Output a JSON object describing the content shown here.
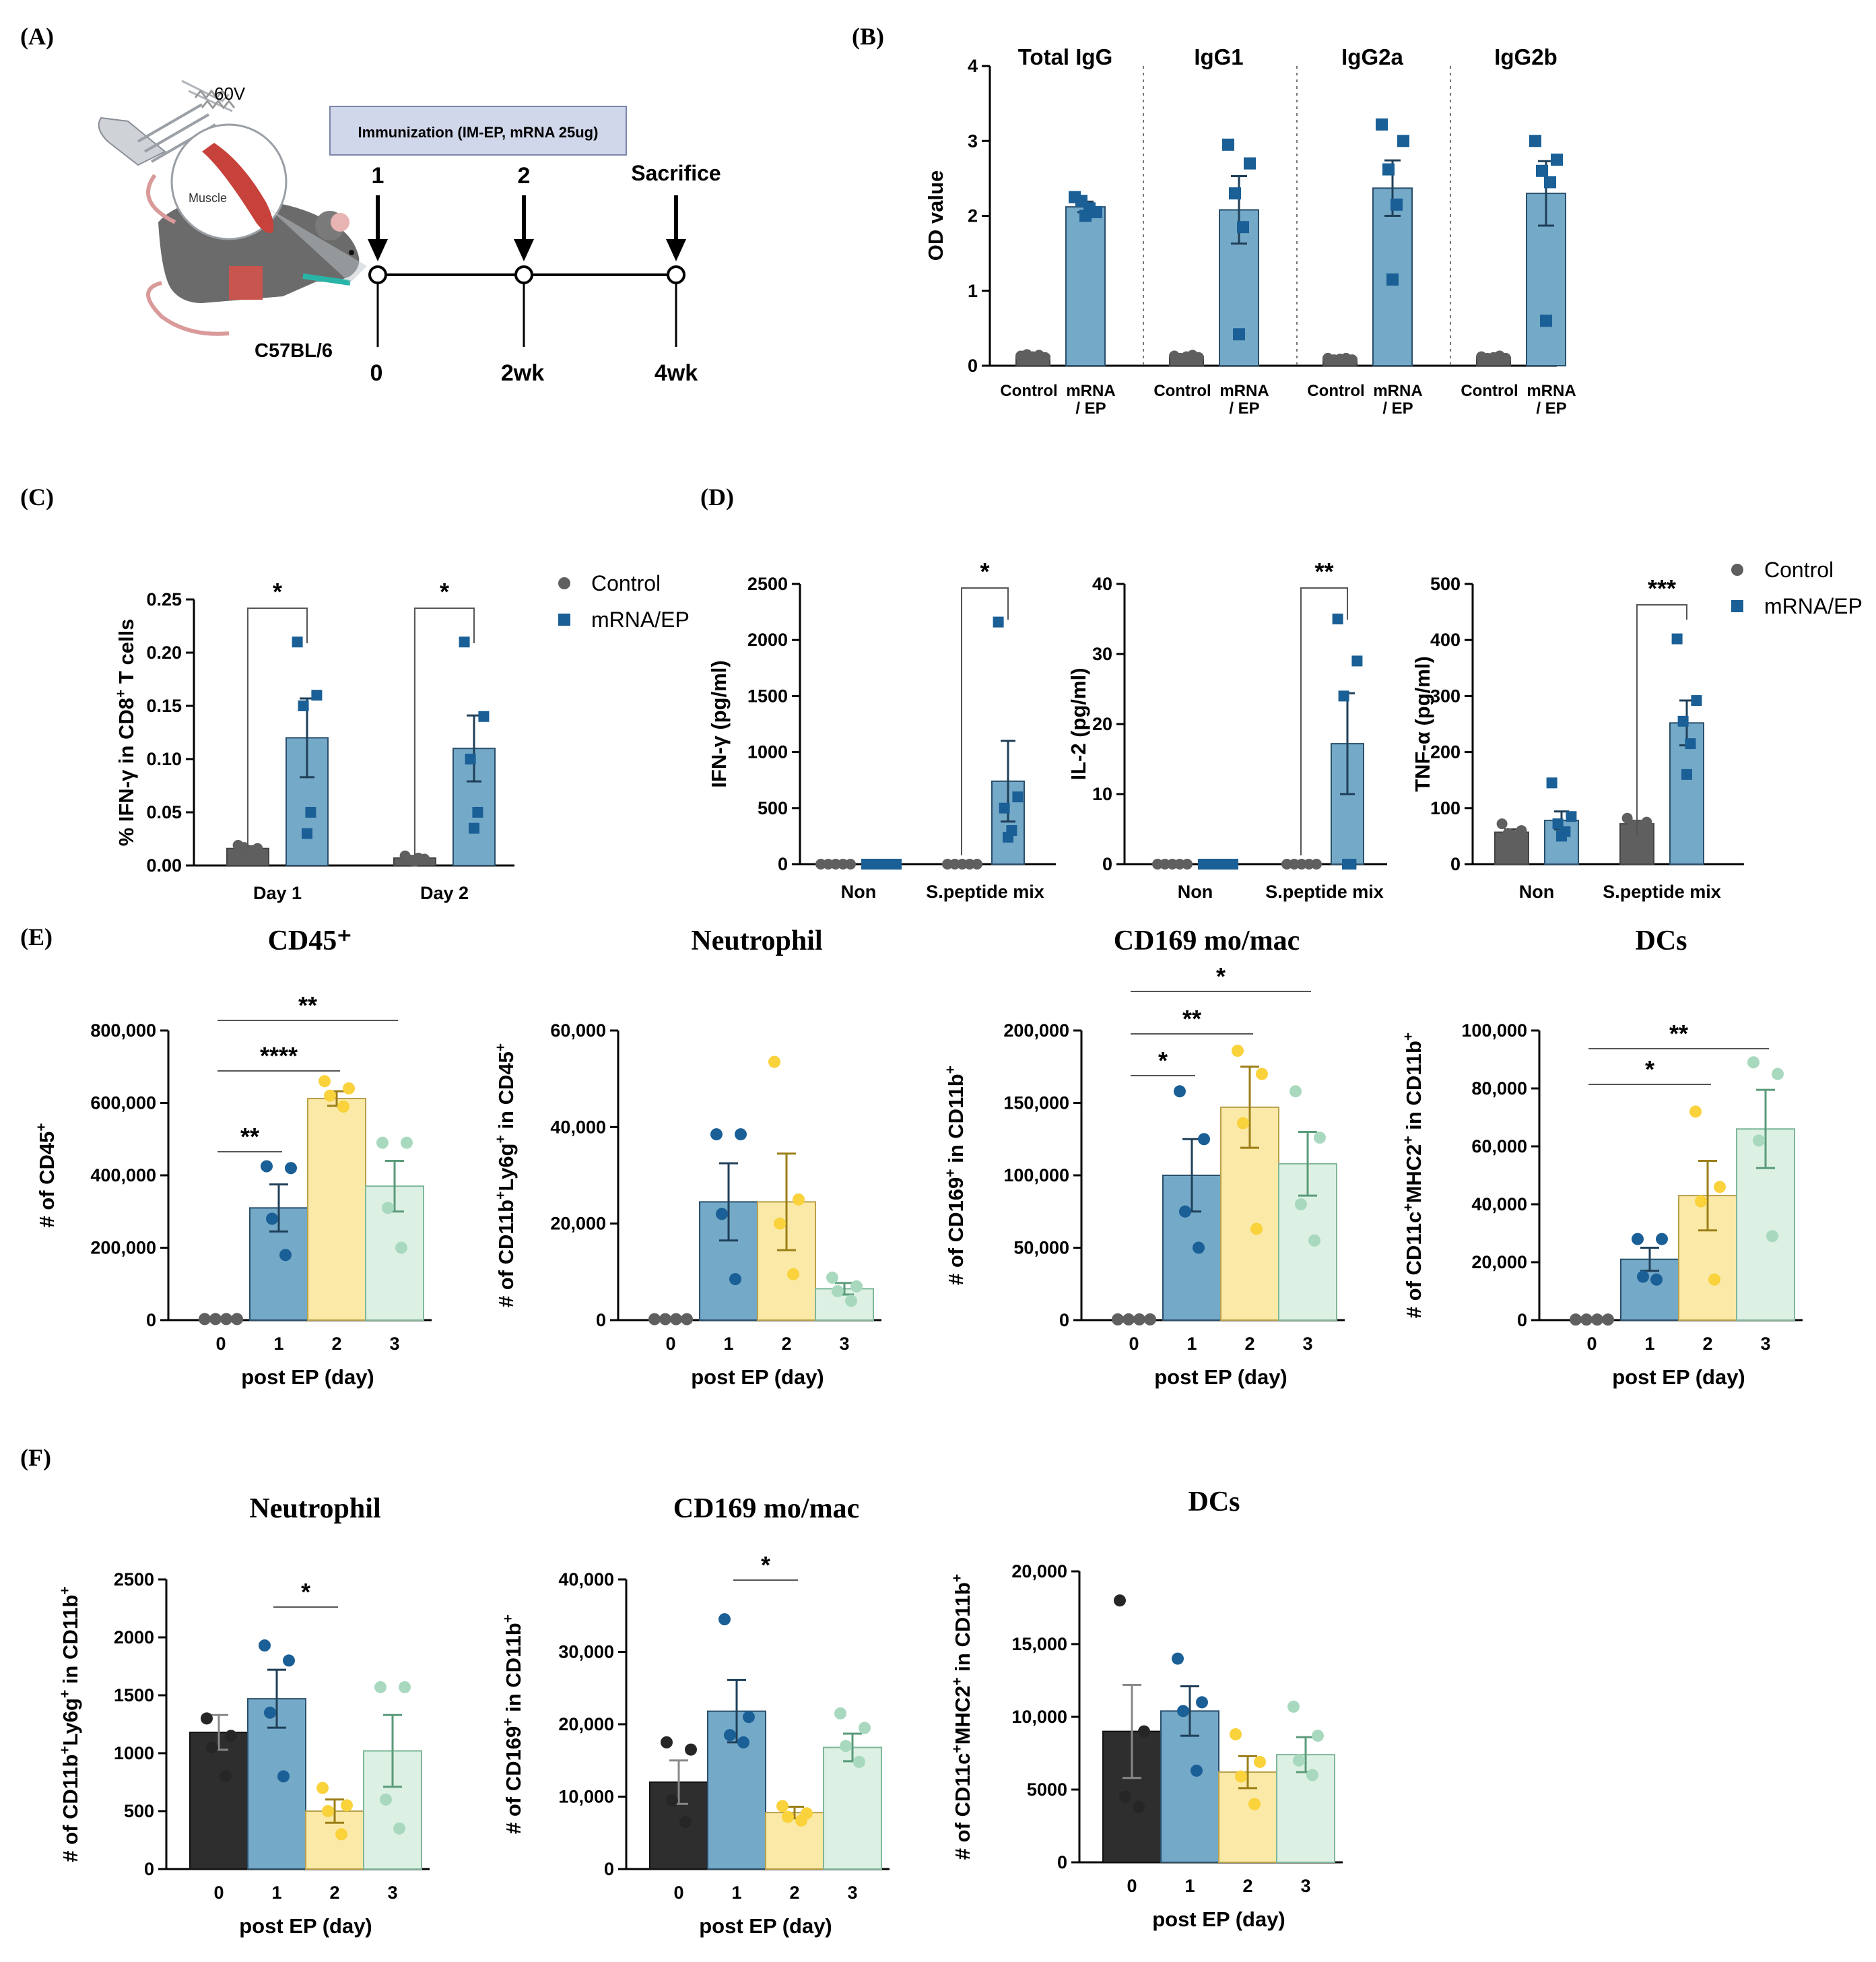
{
  "colors": {
    "grey": "#5f5f5f",
    "blue": "#1a5f96",
    "blue_bar": "#74a9c8",
    "yellow": "#f9d23c",
    "yellow_bar": "#fbe9a7",
    "green": "#a8d9bf",
    "green_bar": "#dcf0e3",
    "black": "#262626",
    "black_bar": "#2e2e2e"
  },
  "panels": {
    "A": "(A)",
    "B": "(B)",
    "C": "(C)",
    "D": "(D)",
    "E": "(E)",
    "F": "(F)"
  },
  "diagram": {
    "voltage": "60V",
    "muscle": "Muscle",
    "immunization": "Immunization (IM-EP, mRNA 25ug)",
    "strain": "C57BL/6",
    "dose1": "1",
    "dose2": "2",
    "sacrifice": "Sacrifice",
    "t0": "0",
    "t1": "2wk",
    "t2": "4wk"
  },
  "chart_data": [
    {
      "id": "B",
      "type": "bar",
      "ylabel": "OD value",
      "ylim": [
        0,
        4
      ],
      "yticks": [
        "0",
        "1",
        "2",
        "3",
        "4"
      ],
      "groups": [
        {
          "title": "Total IgG",
          "categories": [
            "Control",
            "mRNA / EP"
          ],
          "means": [
            0.13,
            2.12
          ],
          "sem": [
            0.02,
            0.07
          ],
          "points": [
            [
              0.13,
              0.15,
              0.12,
              0.14,
              0.11
            ],
            [
              2.25,
              2.05,
              2.2,
              2.1,
              2.0
            ]
          ]
        },
        {
          "title": "IgG1",
          "categories": [
            "Control",
            "mRNA / EP"
          ],
          "means": [
            0.12,
            2.08
          ],
          "sem": [
            0.02,
            0.45
          ],
          "points": [
            [
              0.13,
              0.1,
              0.12,
              0.14,
              0.11
            ],
            [
              2.95,
              2.7,
              2.3,
              1.85,
              0.42
            ]
          ]
        },
        {
          "title": "IgG2a",
          "categories": [
            "Control",
            "mRNA / EP"
          ],
          "means": [
            0.09,
            2.37
          ],
          "sem": [
            0.01,
            0.37
          ],
          "points": [
            [
              0.1,
              0.08,
              0.09,
              0.1,
              0.08
            ],
            [
              3.22,
              3.0,
              2.62,
              2.15,
              1.15
            ]
          ]
        },
        {
          "title": "IgG2b",
          "categories": [
            "Control",
            "mRNA / EP"
          ],
          "means": [
            0.11,
            2.3
          ],
          "sem": [
            0.02,
            0.43
          ],
          "points": [
            [
              0.12,
              0.1,
              0.11,
              0.13,
              0.1
            ],
            [
              3.0,
              2.75,
              2.6,
              2.45,
              0.6
            ]
          ]
        }
      ]
    },
    {
      "id": "C",
      "type": "bar",
      "ylabel": "% IFN-γ in CD8⁺ T cells",
      "ylim": [
        0,
        0.25
      ],
      "yticks": [
        "0.00",
        "0.05",
        "0.10",
        "0.15",
        "0.20",
        "0.25"
      ],
      "categories": [
        "Day 1",
        "Day 2"
      ],
      "series": [
        {
          "name": "Control",
          "means": [
            0.016,
            0.007
          ],
          "sem": [
            0.002,
            0.002
          ],
          "points": [
            [
              0.019,
              0.016,
              0.017,
              0.014,
              0.013
            ],
            [
              0.009,
              0.006,
              0.005,
              0.007,
              0.004
            ]
          ]
        },
        {
          "name": "mRNA/EP",
          "means": [
            0.12,
            0.11
          ],
          "sem": [
            0.037,
            0.031
          ],
          "points": [
            [
              0.21,
              0.16,
              0.15,
              0.05,
              0.03
            ],
            [
              0.21,
              0.14,
              0.1,
              0.05,
              0.035
            ]
          ]
        }
      ],
      "significance": [
        "*",
        "*"
      ]
    },
    {
      "id": "D1",
      "type": "bar",
      "ylabel": "IFN-γ (pg/ml)",
      "ylim": [
        0,
        2500
      ],
      "yticks": [
        "0",
        "500",
        "1000",
        "1500",
        "2000",
        "2500"
      ],
      "categories": [
        "Non",
        "S.peptide mix"
      ],
      "series": [
        {
          "name": "Control",
          "means": [
            0,
            0
          ],
          "sem": [
            0,
            0
          ],
          "points": [
            [
              0,
              0,
              0,
              0,
              0
            ],
            [
              0,
              0,
              0,
              0,
              0
            ]
          ]
        },
        {
          "name": "mRNA/EP",
          "means": [
            0,
            740
          ],
          "sem": [
            0,
            360
          ],
          "points": [
            [
              0,
              0,
              0,
              0,
              0
            ],
            [
              2160,
              600,
              500,
              300,
              240
            ]
          ]
        }
      ],
      "significance": "*"
    },
    {
      "id": "D2",
      "type": "bar",
      "ylabel": "IL-2 (pg/ml)",
      "ylim": [
        0,
        40
      ],
      "yticks": [
        "0",
        "10",
        "20",
        "30",
        "40"
      ],
      "categories": [
        "Non",
        "S.peptide mix"
      ],
      "series": [
        {
          "name": "Control",
          "means": [
            0,
            0
          ],
          "sem": [
            0,
            0
          ],
          "points": [
            [
              0,
              0,
              0,
              0,
              0
            ],
            [
              0,
              0,
              0,
              0,
              0
            ]
          ]
        },
        {
          "name": "mRNA/EP",
          "means": [
            0,
            17.2
          ],
          "sem": [
            0,
            7.2
          ],
          "points": [
            [
              0,
              0,
              0,
              0,
              0
            ],
            [
              35,
              29,
              24,
              0,
              0
            ]
          ]
        }
      ],
      "significance": "**"
    },
    {
      "id": "D3",
      "type": "bar",
      "ylabel": "TNF-α (pg/ml)",
      "ylim": [
        0,
        500
      ],
      "yticks": [
        "0",
        "100",
        "200",
        "300",
        "400",
        "500"
      ],
      "categories": [
        "Non",
        "S.peptide mix"
      ],
      "series": [
        {
          "name": "Control",
          "means": [
            57,
            72
          ],
          "sem": [
            5,
            5
          ],
          "points": [
            [
              72,
              60,
              55,
              50,
              52
            ],
            [
              82,
              75,
              70,
              68,
              65
            ]
          ]
        },
        {
          "name": "mRNA/EP",
          "means": [
            78,
            252
          ],
          "sem": [
            16,
            40
          ],
          "points": [
            [
              145,
              85,
              72,
              58,
              50
            ],
            [
              402,
              292,
              255,
              215,
              160
            ]
          ]
        }
      ],
      "significance": "***"
    },
    {
      "id": "E1",
      "type": "bar",
      "title": "CD45⁺",
      "ylabel": "# of CD45⁺",
      "xlabel": "post EP (day)",
      "ylim": [
        0,
        800000
      ],
      "yticks": [
        "0",
        "200,000",
        "400,000",
        "600,000",
        "800,000"
      ],
      "categories": [
        "0",
        "1",
        "2",
        "3"
      ],
      "means": [
        3000,
        310000,
        612000,
        370000
      ],
      "sem": [
        500,
        65000,
        20000,
        70000
      ],
      "points": [
        [
          3000,
          3000,
          3000,
          3000
        ],
        [
          425000,
          420000,
          280000,
          180000
        ],
        [
          660000,
          640000,
          620000,
          590000
        ],
        [
          490000,
          490000,
          310000,
          200000
        ]
      ],
      "significance": [
        {
          "from": 0,
          "to": 1,
          "label": "**"
        },
        {
          "from": 0,
          "to": 2,
          "label": "****"
        },
        {
          "from": 0,
          "to": 3,
          "label": "**"
        }
      ]
    },
    {
      "id": "E2",
      "type": "bar",
      "title": "Neutrophil",
      "ylabel": "# of CD11b⁺Ly6g⁺ in CD45⁺",
      "xlabel": "post EP (day)",
      "ylim": [
        0,
        60000
      ],
      "yticks": [
        "0",
        "20,000",
        "40,000",
        "60,000"
      ],
      "categories": [
        "0",
        "1",
        "2",
        "3"
      ],
      "means": [
        200,
        24500,
        24500,
        6500
      ],
      "sem": [
        50,
        8000,
        10000,
        1200
      ],
      "points": [
        [
          200,
          200,
          200,
          200
        ],
        [
          38500,
          38500,
          22000,
          8500
        ],
        [
          53500,
          25000,
          20000,
          9500
        ],
        [
          8800,
          7000,
          6000,
          4000
        ]
      ],
      "significance": []
    },
    {
      "id": "E3",
      "type": "bar",
      "title": "CD169 mo/mac",
      "ylabel": "# of CD169⁺ in CD11b⁺",
      "xlabel": "post EP (day)",
      "ylim": [
        0,
        200000
      ],
      "yticks": [
        "0",
        "50,000",
        "100,000",
        "150,000",
        "200,000"
      ],
      "categories": [
        "0",
        "1",
        "2",
        "3"
      ],
      "means": [
        500,
        100000,
        147000,
        108000
      ],
      "sem": [
        100,
        25000,
        28000,
        22000
      ],
      "points": [
        [
          500,
          500,
          500,
          500
        ],
        [
          158000,
          125000,
          75000,
          50000
        ],
        [
          186000,
          170000,
          136000,
          63000
        ],
        [
          158000,
          126000,
          80000,
          55000
        ]
      ],
      "significance": [
        {
          "from": 0,
          "to": 1,
          "label": "*"
        },
        {
          "from": 0,
          "to": 2,
          "label": "**"
        },
        {
          "from": 0,
          "to": 3,
          "label": "*"
        }
      ]
    },
    {
      "id": "E4",
      "type": "bar",
      "title": "DCs",
      "ylabel": "# of CD11c⁺MHC2⁺ in CD11b⁺",
      "xlabel": "post EP (day)",
      "ylim": [
        0,
        100000
      ],
      "yticks": [
        "0",
        "20,000",
        "40,000",
        "60,000",
        "80,000",
        "100,000"
      ],
      "categories": [
        "0",
        "1",
        "2",
        "3"
      ],
      "means": [
        200,
        21000,
        43000,
        66000
      ],
      "sem": [
        50,
        4000,
        12000,
        13500
      ],
      "points": [
        [
          200,
          200,
          200,
          200
        ],
        [
          28000,
          28000,
          15000,
          14000
        ],
        [
          72000,
          46000,
          41000,
          14000
        ],
        [
          89000,
          85000,
          62000,
          29000
        ]
      ],
      "significance": [
        {
          "from": 0,
          "to": 2,
          "label": "*"
        },
        {
          "from": 0,
          "to": 3,
          "label": "**"
        }
      ]
    },
    {
      "id": "F1",
      "type": "bar",
      "title": "Neutrophil",
      "ylabel": "# of CD11b⁺Ly6g⁺ in CD11b⁺",
      "xlabel": "post EP (day)",
      "ylim": [
        0,
        2500
      ],
      "yticks": [
        "0",
        "500",
        "1000",
        "1500",
        "2000",
        "2500"
      ],
      "categories": [
        "0",
        "1",
        "2",
        "3"
      ],
      "means": [
        1180,
        1470,
        500,
        1020
      ],
      "sem": [
        150,
        250,
        100,
        310
      ],
      "points": [
        [
          1300,
          1150,
          1050,
          800
        ],
        [
          1930,
          1800,
          1350,
          800
        ],
        [
          700,
          550,
          500,
          300
        ],
        [
          1570,
          1570,
          600,
          350
        ]
      ],
      "significance": [
        {
          "from": 1,
          "to": 2,
          "label": "*"
        }
      ]
    },
    {
      "id": "F2",
      "type": "bar",
      "title": "CD169 mo/mac",
      "ylabel": "# of CD169⁺ in CD11b⁺",
      "xlabel": "post EP (day)",
      "ylim": [
        0,
        40000
      ],
      "yticks": [
        "0",
        "10,000",
        "20,000",
        "30,000",
        "40,000"
      ],
      "categories": [
        "0",
        "1",
        "2",
        "3"
      ],
      "means": [
        12000,
        21800,
        7800,
        16800
      ],
      "sem": [
        3000,
        4300,
        800,
        1900
      ],
      "points": [
        [
          17500,
          16500,
          9500,
          6500
        ],
        [
          34500,
          21000,
          18500,
          17500
        ],
        [
          8700,
          7700,
          7200,
          6700
        ],
        [
          21500,
          19500,
          17000,
          14800
        ]
      ],
      "significance": [
        {
          "from": 1,
          "to": 2,
          "label": "*"
        }
      ]
    },
    {
      "id": "F3",
      "type": "bar",
      "title": "DCs",
      "ylabel": "# of CD11c⁺MHC2⁺ in CD11b⁺",
      "xlabel": "post EP (day)",
      "ylim": [
        0,
        20000
      ],
      "yticks": [
        "0",
        "5000",
        "10,000",
        "15,000",
        "20,000"
      ],
      "categories": [
        "0",
        "1",
        "2",
        "3"
      ],
      "means": [
        9000,
        10400,
        6200,
        7400
      ],
      "sem": [
        3200,
        1700,
        1100,
        1200
      ],
      "points": [
        [
          18000,
          9000,
          4500,
          3800
        ],
        [
          14000,
          11000,
          10400,
          6300
        ],
        [
          8800,
          6900,
          5900,
          4000
        ],
        [
          10700,
          8700,
          7000,
          6000
        ]
      ],
      "significance": []
    }
  ],
  "legend": {
    "control": "Control",
    "mrna_c": "mRNA/EP",
    "mrna_d": "mRNA/EP"
  }
}
